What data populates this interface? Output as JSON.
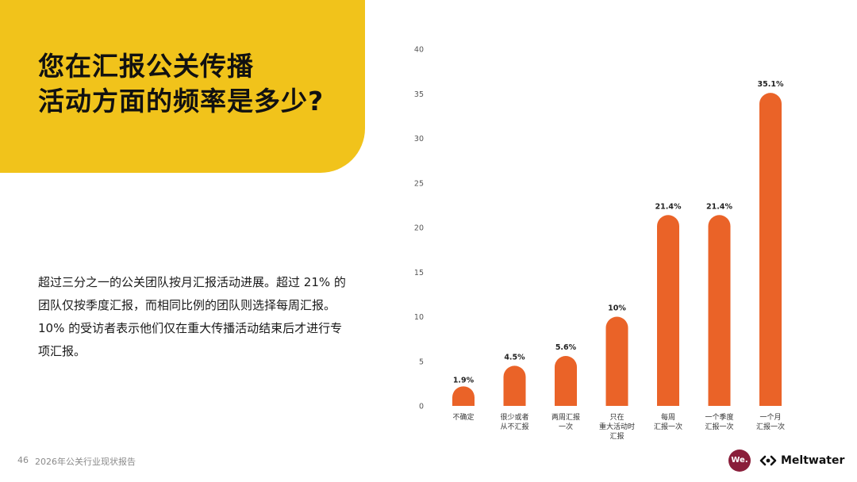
{
  "title": {
    "line1": "您在汇报公关传播",
    "line2": "活动方面的频率是多少?"
  },
  "body": {
    "line1": "超过三分之一的公关团队按月汇报活动进展。超过 21% 的",
    "line2": "团队仅按季度汇报，而相同比例的团队则选择每周汇报。",
    "line3": "10% 的受访者表示他们仅在重大传播活动结束后才进行专",
    "line4": "项汇报。"
  },
  "footer": {
    "page_number": "46",
    "report_name": "2026年公关行业现状报告",
    "we_logo_text": "We.",
    "brand_name": "Meltwater"
  },
  "colors": {
    "accent_yellow": "#f1c31b",
    "bar_orange": "#ea6328",
    "we_logo_burgundy": "#8a1e3a"
  },
  "chart_data": {
    "type": "bar",
    "categories": [
      [
        "不确定"
      ],
      [
        "很少或者",
        "从不汇报"
      ],
      [
        "两周汇报",
        "一次"
      ],
      [
        "只在",
        "重大活动时",
        "汇报"
      ],
      [
        "每周",
        "汇报一次"
      ],
      [
        "一个季度",
        "汇报一次"
      ],
      [
        "一个月",
        "汇报一次"
      ]
    ],
    "values": [
      1.9,
      4.5,
      5.6,
      10,
      21.4,
      21.4,
      35.1
    ],
    "value_labels": [
      "1.9%",
      "4.5%",
      "5.6%",
      "10%",
      "21.4%",
      "21.4%",
      "35.1%"
    ],
    "yticks": [
      0,
      5,
      10,
      15,
      20,
      25,
      30,
      35,
      40
    ],
    "ylim": [
      0,
      40
    ],
    "title": "",
    "xlabel": "",
    "ylabel": "",
    "grid": false,
    "legend": "none",
    "bar_style": "rounded-top"
  }
}
